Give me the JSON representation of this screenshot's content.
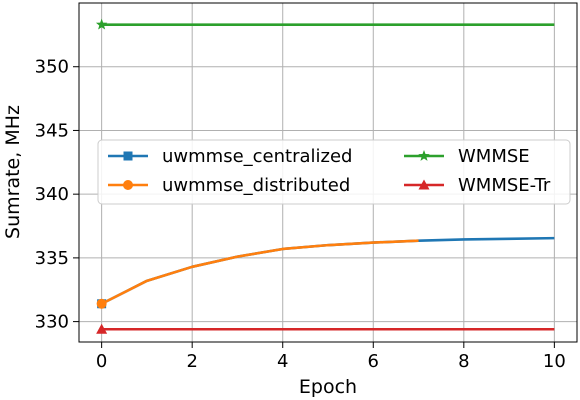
{
  "chart_data": {
    "type": "line",
    "title": "",
    "xlabel": "Epoch",
    "ylabel": "Sumrate, MHz",
    "xlim": [
      -0.5,
      10.5
    ],
    "ylim": [
      328.4,
      355.0
    ],
    "xticks": [
      0,
      2,
      4,
      6,
      8,
      10
    ],
    "yticks": [
      330,
      335,
      340,
      345,
      350
    ],
    "grid": true,
    "legend": {
      "placement": "center-left",
      "columns": 2
    },
    "series": [
      {
        "name": "uwmmse_centralized",
        "color": "#1f77b4",
        "marker": "square",
        "x": [
          0,
          1,
          2,
          3,
          4,
          5,
          6,
          7,
          8,
          9,
          10
        ],
        "values": [
          331.4,
          333.2,
          334.3,
          335.1,
          335.7,
          336.0,
          336.2,
          336.35,
          336.45,
          336.5,
          336.55
        ]
      },
      {
        "name": "uwmmse_distributed",
        "color": "#ff7f0e",
        "marker": "circle",
        "x": [
          0,
          1,
          2,
          3,
          4,
          5,
          6,
          7
        ],
        "values": [
          331.4,
          333.2,
          334.3,
          335.1,
          335.7,
          336.0,
          336.2,
          336.35
        ]
      },
      {
        "name": "WMMSE",
        "color": "#2ca02c",
        "marker": "star",
        "x": [
          0,
          10
        ],
        "values": [
          353.3,
          353.3
        ]
      },
      {
        "name": "WMMSE-Tr",
        "color": "#d62728",
        "marker": "triangle",
        "x": [
          0,
          10
        ],
        "values": [
          329.4,
          329.4
        ]
      }
    ]
  }
}
